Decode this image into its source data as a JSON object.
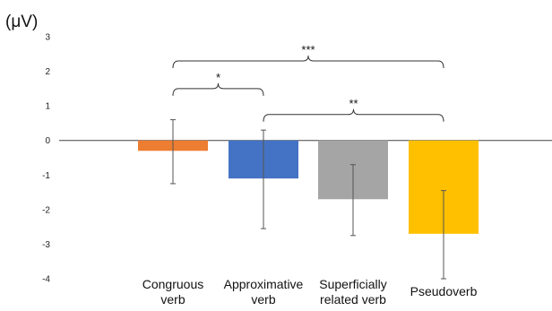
{
  "chart_data": {
    "type": "bar",
    "unit_label": "(μV)",
    "categories": [
      [
        "Congruous",
        "verb"
      ],
      [
        "Approximative",
        "verb"
      ],
      [
        "Superficially",
        "related verb"
      ],
      [
        "Pseudoverb",
        ""
      ]
    ],
    "values": [
      -0.3,
      -1.1,
      -1.7,
      -2.7
    ],
    "error_low": [
      -1.25,
      -2.55,
      -2.75,
      -4.0
    ],
    "error_high": [
      0.6,
      0.3,
      -0.7,
      -1.45
    ],
    "colors": [
      "#ED7D31",
      "#4472C4",
      "#A5A5A5",
      "#FFC000"
    ],
    "ylim": [
      -4,
      3
    ],
    "yticks": [
      "3",
      "2",
      "1",
      "0",
      "-1",
      "-2",
      "-3",
      "-4"
    ],
    "significance": [
      {
        "from": 0,
        "to": 3,
        "label": "***",
        "level": 2.3
      },
      {
        "from": 0,
        "to": 1,
        "label": "*",
        "level": 1.5
      },
      {
        "from": 1,
        "to": 3,
        "label": "**",
        "level": 0.75
      }
    ],
    "xlabel": "",
    "ylabel": "",
    "title": "",
    "grid": false
  }
}
